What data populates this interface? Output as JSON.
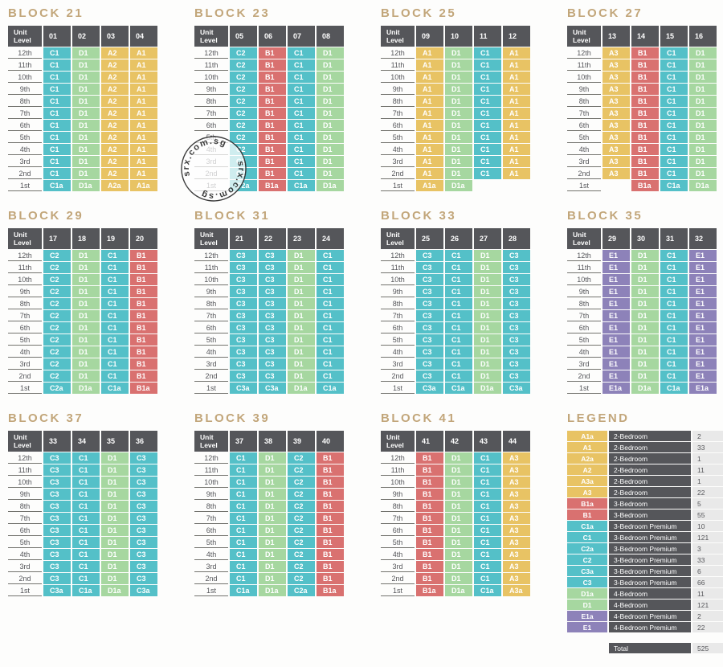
{
  "colors": {
    "teal": "#54c0c8",
    "green": "#a6d7a0",
    "yellow": "#e8c364",
    "red": "#d97170",
    "purple": "#8d82b9",
    "header_bg": "#55565a",
    "count_bg": "#e9e9e9",
    "title_text": "#c2a67a"
  },
  "type_color_map": {
    "A": "yellow",
    "B": "red",
    "C": "teal",
    "D": "green",
    "E": "purple"
  },
  "watermark": {
    "text": "srx.com.sg"
  },
  "chart_data": {
    "type": "table",
    "level_header": "Unit\nLevel",
    "levels": [
      "12th",
      "11th",
      "10th",
      "9th",
      "8th",
      "7th",
      "6th",
      "5th",
      "4th",
      "3rd",
      "2nd",
      "1st"
    ],
    "blocks": [
      {
        "title": "BLOCK 21",
        "units": [
          "01",
          "02",
          "03",
          "04"
        ],
        "type_12th_to_2nd": [
          "C1",
          "D1",
          "A2",
          "A1"
        ],
        "type_1st": [
          "C1a",
          "D1a",
          "A2a",
          "A1a"
        ]
      },
      {
        "title": "BLOCK 23",
        "units": [
          "05",
          "06",
          "07",
          "08"
        ],
        "type_12th_to_2nd": [
          "C2",
          "B1",
          "C1",
          "D1"
        ],
        "type_1st": [
          "C2a",
          "B1a",
          "C1a",
          "D1a"
        ]
      },
      {
        "title": "BLOCK 25",
        "units": [
          "09",
          "10",
          "11",
          "12"
        ],
        "type_12th_to_2nd": [
          "A1",
          "D1",
          "C1",
          "A1"
        ],
        "type_1st": [
          "A1a",
          "D1a",
          null,
          null
        ]
      },
      {
        "title": "BLOCK 27",
        "units": [
          "13",
          "14",
          "15",
          "16"
        ],
        "type_12th_to_2nd": [
          "A3",
          "B1",
          "C1",
          "D1"
        ],
        "type_1st": [
          null,
          "B1a",
          "C1a",
          "D1a"
        ]
      },
      {
        "title": "BLOCK 29",
        "units": [
          "17",
          "18",
          "19",
          "20"
        ],
        "type_12th_to_2nd": [
          "C2",
          "D1",
          "C1",
          "B1"
        ],
        "type_1st": [
          "C2a",
          "D1a",
          "C1a",
          "B1a"
        ]
      },
      {
        "title": "BLOCK 31",
        "units": [
          "21",
          "22",
          "23",
          "24"
        ],
        "type_12th_to_2nd": [
          "C3",
          "C3",
          "D1",
          "C1"
        ],
        "type_1st": [
          "C3a",
          "C3a",
          "D1a",
          "C1a"
        ]
      },
      {
        "title": "BLOCK 33",
        "units": [
          "25",
          "26",
          "27",
          "28"
        ],
        "type_12th_to_2nd": [
          "C3",
          "C1",
          "D1",
          "C3"
        ],
        "type_1st": [
          "C3a",
          "C1a",
          "D1a",
          "C3a"
        ]
      },
      {
        "title": "BLOCK 35",
        "units": [
          "29",
          "30",
          "31",
          "32"
        ],
        "type_12th_to_2nd": [
          "E1",
          "D1",
          "C1",
          "E1"
        ],
        "type_1st": [
          "E1a",
          "D1a",
          "C1a",
          "E1a"
        ]
      },
      {
        "title": "BLOCK 37",
        "units": [
          "33",
          "34",
          "35",
          "36"
        ],
        "type_12th_to_2nd": [
          "C3",
          "C1",
          "D1",
          "C3"
        ],
        "type_1st": [
          "C3a",
          "C1a",
          "D1a",
          "C3a"
        ]
      },
      {
        "title": "BLOCK 39",
        "units": [
          "37",
          "38",
          "39",
          "40"
        ],
        "type_12th_to_2nd": [
          "C1",
          "D1",
          "C2",
          "B1"
        ],
        "type_1st": [
          "C1a",
          "D1a",
          "C2a",
          "B1a"
        ]
      },
      {
        "title": "BLOCK 41",
        "units": [
          "41",
          "42",
          "43",
          "44"
        ],
        "type_12th_to_2nd": [
          "B1",
          "D1",
          "C1",
          "A3"
        ],
        "type_1st": [
          "B1a",
          "D1a",
          "C1a",
          "A3a"
        ]
      }
    ],
    "legend": {
      "title": "LEGEND",
      "rows": [
        {
          "code": "A1a",
          "label": "2-Bedroom",
          "count": "2"
        },
        {
          "code": "A1",
          "label": "2-Bedroom",
          "count": "33"
        },
        {
          "code": "A2a",
          "label": "2-Bedroom",
          "count": "1"
        },
        {
          "code": "A2",
          "label": "2-Bedroom",
          "count": "11"
        },
        {
          "code": "A3a",
          "label": "2-Bedroom",
          "count": "1"
        },
        {
          "code": "A3",
          "label": "2-Bedroom",
          "count": "22"
        },
        {
          "code": "B1a",
          "label": "3-Bedroom",
          "count": "5"
        },
        {
          "code": "B1",
          "label": "3-Bedroom",
          "count": "55"
        },
        {
          "code": "C1a",
          "label": "3-Bedroom Premium",
          "count": "10"
        },
        {
          "code": "C1",
          "label": "3-Bedroom Premium",
          "count": "121"
        },
        {
          "code": "C2a",
          "label": "3-Bedroom Premium",
          "count": "3"
        },
        {
          "code": "C2",
          "label": "3-Bedroom Premium",
          "count": "33"
        },
        {
          "code": "C3a",
          "label": "3-Bedroom Premium",
          "count": "6"
        },
        {
          "code": "C3",
          "label": "3-Bedroom Premium",
          "count": "66"
        },
        {
          "code": "D1a",
          "label": "4-Bedroom",
          "count": "11"
        },
        {
          "code": "D1",
          "label": "4-Bedroom",
          "count": "121"
        },
        {
          "code": "E1a",
          "label": "4-Bedroom Premium",
          "count": "2"
        },
        {
          "code": "E1",
          "label": "4-Bedroom Premium",
          "count": "22"
        }
      ],
      "total_label": "Total",
      "total_count": "525"
    }
  }
}
